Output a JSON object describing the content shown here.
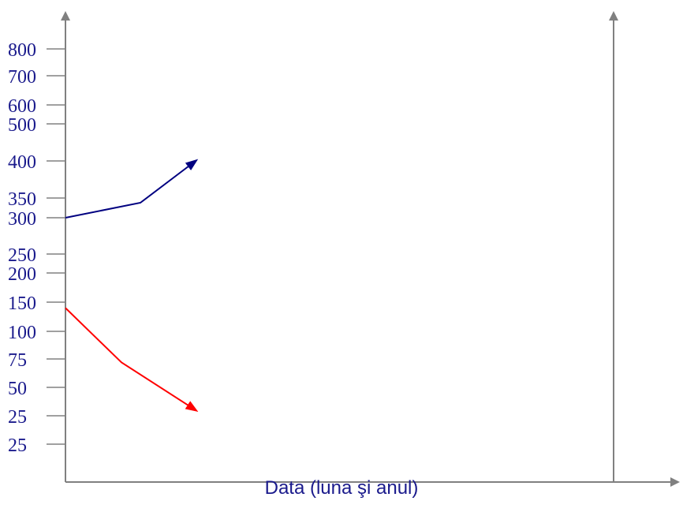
{
  "chart_data": {
    "type": "line",
    "title": "",
    "xlabel": "Data (luna şi anul)",
    "ylabel": "",
    "y_tick_labels": [
      "800",
      "700",
      "600",
      "500",
      "400",
      "350",
      "300",
      "250",
      "200",
      "150",
      "100",
      "75",
      "50",
      "25",
      "25"
    ],
    "series": [
      {
        "color": "#000080",
        "x_index": [
          0,
          1,
          2
        ],
        "values": [
          300,
          338,
          400
        ],
        "arrow_end": true
      },
      {
        "color": "#ff0000",
        "x_index": [
          0,
          1,
          2
        ],
        "values": [
          140,
          72,
          30
        ],
        "arrow_end": true
      }
    ],
    "grid": false,
    "secondary_y_axis": true
  },
  "colors": {
    "axis": "#808080",
    "tick_text": "#1a1a8c"
  }
}
